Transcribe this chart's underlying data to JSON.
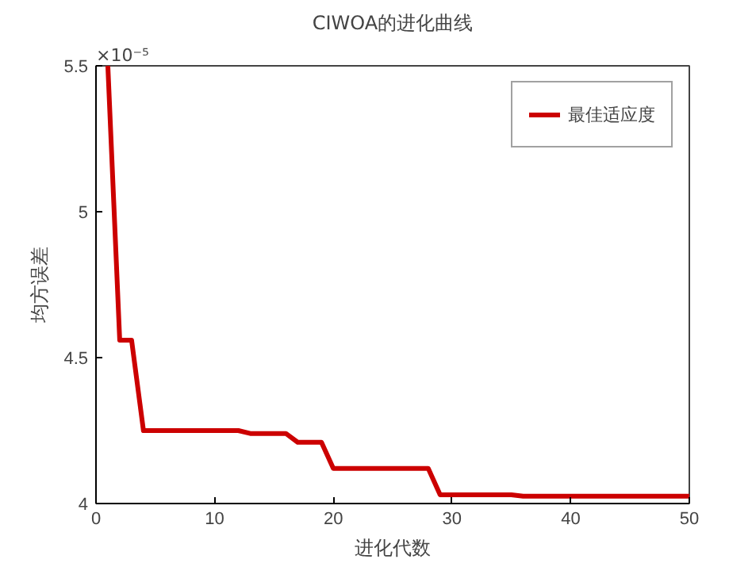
{
  "chart_data": {
    "type": "line",
    "title": "CIWOA的进化曲线",
    "xlabel": "进化代数",
    "ylabel": "均方误差",
    "annotations": [
      "×10⁻⁵"
    ],
    "x": [
      1,
      2,
      3,
      4,
      5,
      6,
      7,
      8,
      9,
      10,
      11,
      12,
      13,
      14,
      15,
      16,
      17,
      18,
      19,
      20,
      21,
      22,
      23,
      24,
      25,
      26,
      27,
      28,
      29,
      30,
      31,
      32,
      33,
      34,
      35,
      36,
      37,
      38,
      39,
      40,
      41,
      42,
      43,
      44,
      45,
      46,
      47,
      48,
      49,
      50
    ],
    "series": [
      {
        "name": "最佳适应度",
        "color": "#cc0000",
        "values": [
          5.5,
          4.56,
          4.56,
          4.25,
          4.25,
          4.25,
          4.25,
          4.25,
          4.25,
          4.25,
          4.25,
          4.25,
          4.24,
          4.24,
          4.24,
          4.24,
          4.21,
          4.21,
          4.21,
          4.12,
          4.12,
          4.12,
          4.12,
          4.12,
          4.12,
          4.12,
          4.12,
          4.12,
          4.03,
          4.03,
          4.03,
          4.03,
          4.03,
          4.03,
          4.03,
          4.025,
          4.025,
          4.025,
          4.025,
          4.025,
          4.025,
          4.025,
          4.025,
          4.025,
          4.025,
          4.025,
          4.025,
          4.025,
          4.025,
          4.025
        ]
      }
    ],
    "xlim": [
      0,
      50
    ],
    "xticks": [
      0,
      10,
      20,
      30,
      40,
      50
    ],
    "ylim": [
      4,
      5.5
    ],
    "yticks": [
      4,
      4.5,
      5,
      5.5
    ],
    "grid": false,
    "legend": "top right",
    "line_style": "solid",
    "marker": "none"
  }
}
